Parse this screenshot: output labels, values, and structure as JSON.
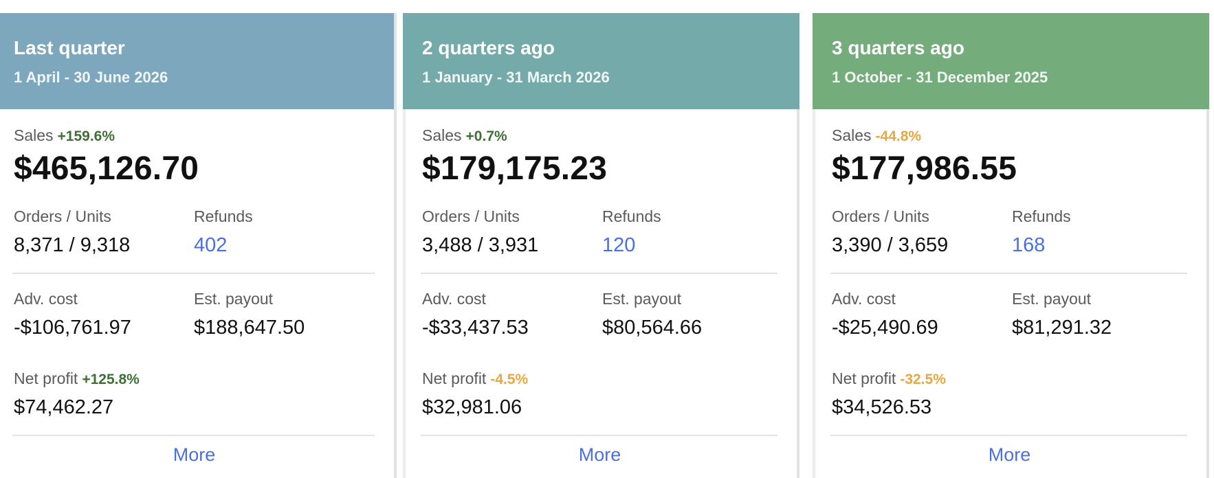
{
  "cards": [
    {
      "title": "Last quarter",
      "subtitle": "1 April - 30 June 2026",
      "header_color": "#7ca7bd",
      "sales_label": "Sales",
      "sales_change": "+159.6%",
      "sales_change_dir": "up",
      "sales_value": "$465,126.70",
      "orders_label": "Orders / Units",
      "orders_value": "8,371 / 9,318",
      "refunds_label": "Refunds",
      "refunds_value": "402",
      "adv_label": "Adv. cost",
      "adv_value": "-$106,761.97",
      "payout_label": "Est. payout",
      "payout_value": "$188,647.50",
      "net_label": "Net profit",
      "net_change": "+125.8%",
      "net_change_dir": "up",
      "net_value": "$74,462.27",
      "more_label": "More"
    },
    {
      "title": "2 quarters ago",
      "subtitle": "1 January - 31 March 2026",
      "header_color": "#74abaa",
      "sales_label": "Sales",
      "sales_change": "+0.7%",
      "sales_change_dir": "up",
      "sales_value": "$179,175.23",
      "orders_label": "Orders / Units",
      "orders_value": "3,488 / 3,931",
      "refunds_label": "Refunds",
      "refunds_value": "120",
      "adv_label": "Adv. cost",
      "adv_value": "-$33,437.53",
      "payout_label": "Est. payout",
      "payout_value": "$80,564.66",
      "net_label": "Net profit",
      "net_change": "-4.5%",
      "net_change_dir": "down",
      "net_value": "$32,981.06",
      "more_label": "More"
    },
    {
      "title": "3 quarters ago",
      "subtitle": "1 October - 31 December 2025",
      "header_color": "#74ac7c",
      "sales_label": "Sales",
      "sales_change": "-44.8%",
      "sales_change_dir": "down",
      "sales_value": "$177,986.55",
      "orders_label": "Orders / Units",
      "orders_value": "3,390 / 3,659",
      "refunds_label": "Refunds",
      "refunds_value": "168",
      "adv_label": "Adv. cost",
      "adv_value": "-$25,490.69",
      "payout_label": "Est. payout",
      "payout_value": "$81,291.32",
      "net_label": "Net profit",
      "net_change": "-32.5%",
      "net_change_dir": "down",
      "net_value": "$34,526.53",
      "more_label": "More"
    }
  ]
}
